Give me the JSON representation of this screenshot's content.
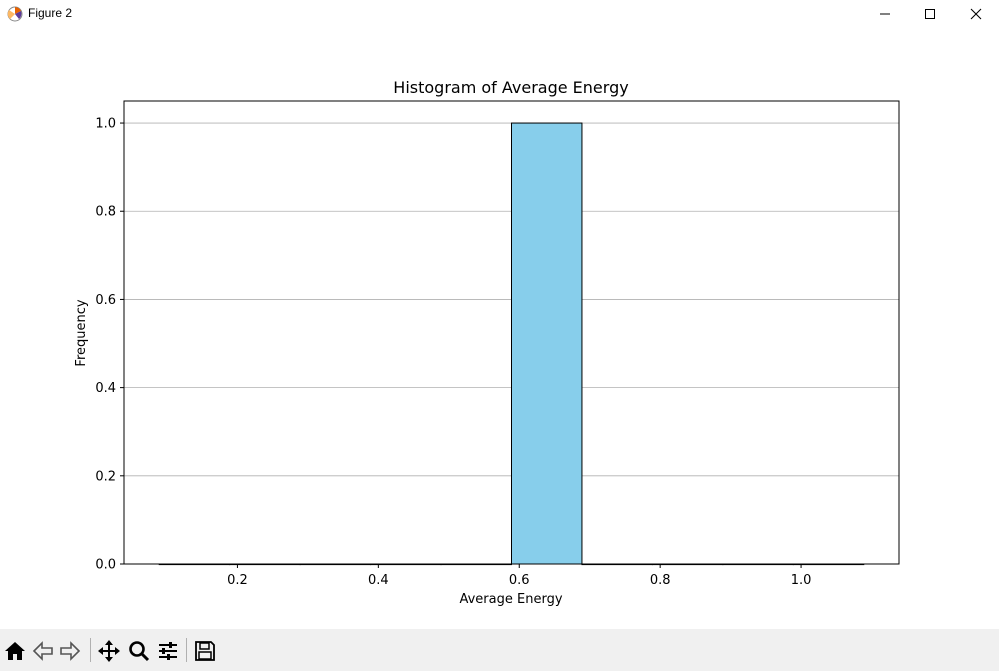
{
  "window": {
    "title": "Figure 2",
    "icon": "matplotlib-icon",
    "controls": [
      "minimize-icon",
      "maximize-icon",
      "close-icon"
    ]
  },
  "toolbar": {
    "buttons": [
      "home-icon",
      "back-arrow-icon",
      "forward-arrow-icon",
      "pan-icon",
      "zoom-icon",
      "configure-subplots-icon",
      "save-icon"
    ]
  },
  "chart_data": {
    "type": "bar",
    "title": "Histogram of Average Energy",
    "xlabel": "Average Energy",
    "ylabel": "Frequency",
    "bins": [
      {
        "start": 0.089,
        "end": 0.189,
        "count": 0
      },
      {
        "start": 0.189,
        "end": 0.289,
        "count": 0
      },
      {
        "start": 0.289,
        "end": 0.389,
        "count": 0
      },
      {
        "start": 0.389,
        "end": 0.489,
        "count": 0
      },
      {
        "start": 0.489,
        "end": 0.589,
        "count": 0
      },
      {
        "start": 0.589,
        "end": 0.689,
        "count": 1
      },
      {
        "start": 0.689,
        "end": 0.789,
        "count": 0
      },
      {
        "start": 0.789,
        "end": 0.889,
        "count": 0
      },
      {
        "start": 0.889,
        "end": 0.989,
        "count": 0
      },
      {
        "start": 0.989,
        "end": 1.089,
        "count": 0
      }
    ],
    "xlim": [
      0.039,
      1.139
    ],
    "ylim": [
      0,
      1.05
    ],
    "xticks": [
      "0.2",
      "0.4",
      "0.6",
      "0.8",
      "1.0"
    ],
    "yticks": [
      "0.0",
      "0.2",
      "0.4",
      "0.6",
      "0.8",
      "1.0"
    ],
    "grid": "y",
    "bar_color": "#87ceeb",
    "edge_color": "#000000"
  }
}
